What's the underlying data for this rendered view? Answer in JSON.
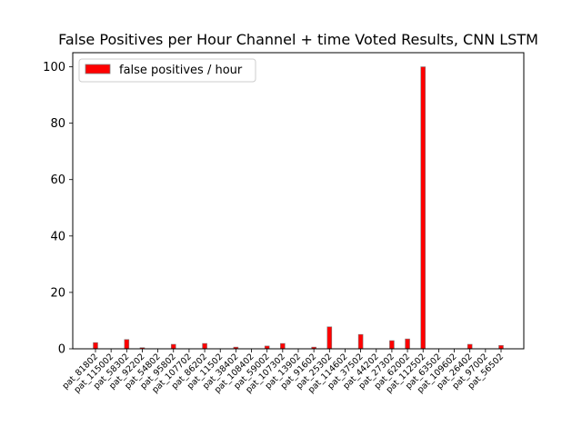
{
  "chart_data": {
    "type": "bar",
    "title": "False Positives per Hour Channel + time Voted Results, CNN LSTM",
    "xlabel": "",
    "ylabel": "",
    "ylim": [
      0,
      105
    ],
    "yticks": [
      0,
      20,
      40,
      60,
      80,
      100
    ],
    "grid": false,
    "legend_position": "top-left",
    "bar_color": "#ff0000",
    "bar_edge_color": "#808080",
    "categories": [
      "pat_81802",
      "pat_115002",
      "pat_58302",
      "pat_92202",
      "pat_54802",
      "pat_95802",
      "pat_107702",
      "pat_86202",
      "pat_11502",
      "pat_38402",
      "pat_108402",
      "pat_59002",
      "pat_107302",
      "pat_13902",
      "pat_91602",
      "pat_25302",
      "pat_114602",
      "pat_37502",
      "pat_44202",
      "pat_27302",
      "pat_62002",
      "pat_112502",
      "pat_63502",
      "pat_109602",
      "pat_26402",
      "pat_97002",
      "pat_56502"
    ],
    "series": [
      {
        "name": "false positives / hour",
        "values": [
          2.2,
          0,
          3.3,
          0.4,
          0,
          1.6,
          0,
          1.9,
          0,
          0.6,
          0,
          1.0,
          1.9,
          0,
          0.6,
          7.8,
          0,
          5.1,
          0,
          2.9,
          3.5,
          100,
          0,
          0,
          1.6,
          0,
          1.2
        ]
      }
    ]
  }
}
